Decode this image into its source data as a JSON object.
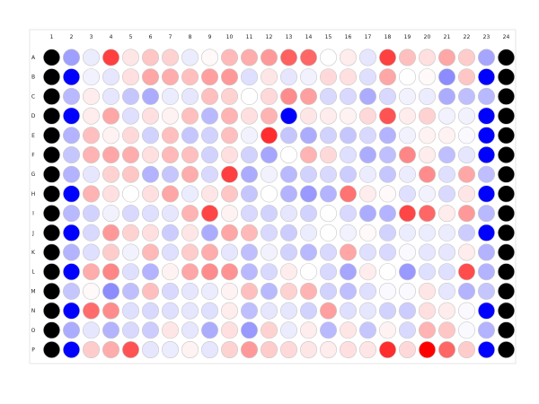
{
  "plate": {
    "columns": [
      "1",
      "2",
      "3",
      "4",
      "5",
      "6",
      "7",
      "8",
      "9",
      "10",
      "11",
      "12",
      "13",
      "14",
      "15",
      "16",
      "17",
      "18",
      "19",
      "20",
      "21",
      "22",
      "23",
      "24"
    ],
    "rows": [
      "A",
      "B",
      "C",
      "D",
      "E",
      "F",
      "G",
      "H",
      "I",
      "J",
      "K",
      "L",
      "M",
      "N",
      "O",
      "P"
    ],
    "value_encoding": "diverging: -4 = strong blue, 0 = white, +4 = strong red; control columns 1 (negative control, black) and 2/23 mixed controls",
    "colors": {
      "negative_control": "#000000",
      "positive_control": "#0000ff",
      "strong_red": "#ff0000",
      "border": "#c8c8c8",
      "frame": "#e6e6e6"
    },
    "wells": [
      [
        "ctrl-k",
        "-1.5",
        "-0.3",
        "3",
        "0.4",
        "0.9",
        "0.7",
        "-0.3",
        "0.1",
        "1.1",
        "1.3",
        "1.6",
        "2.5",
        "2.4",
        "0",
        "0.3",
        "-0.4",
        "3",
        "1",
        "0.5",
        "1.4",
        "0.8",
        "-1.4",
        "ctrl-k"
      ],
      [
        "ctrl-k",
        "ctrl-b",
        "-0.2",
        "-0.4",
        "0.5",
        "1.4",
        "1.3",
        "1",
        "1.5",
        "1.6",
        "-0.5",
        "0.4",
        "-0.4",
        "-0.2",
        "0.6",
        "0.5",
        "-0.5",
        "1.4",
        "0",
        "0.1",
        "-1.8",
        "0.9",
        "ctrl-b",
        "ctrl-k"
      ],
      [
        "ctrl-k",
        "-1.1",
        "0.3",
        "-0.4",
        "-0.9",
        "-1.3",
        "-0.3",
        "-0.4",
        "1",
        "0.7",
        "0",
        "0.6",
        "1.8",
        "1.5",
        "-0.6",
        "-0.6",
        "-1.3",
        "-0.6",
        "-0.2",
        "-0.3",
        "-1.3",
        "-1",
        "-1.1",
        "ctrl-k"
      ],
      [
        "ctrl-k",
        "ctrl-b",
        "0.3",
        "1.4",
        "-0.5",
        "0.5",
        "0.2",
        "1",
        "-1.1",
        "1.2",
        "0.5",
        "1.2",
        "ctrl-b",
        "0.4",
        "0.3",
        "0.2",
        "0.6",
        "2.7",
        "0.3",
        "0.7",
        "-0.2",
        "-0.2",
        "ctrl-b",
        "ctrl-k"
      ],
      [
        "ctrl-k",
        "-1.2",
        "1",
        "0.2",
        "0.6",
        "-0.7",
        "1",
        "-0.9",
        "-0.7",
        "1",
        "-0.2",
        "3.3",
        "-0.9",
        "-1.3",
        "-0.7",
        "-0.9",
        "-0.6",
        "-1.2",
        "-0.2",
        "0.2",
        "0.2",
        "-0.1",
        "ctrl-b",
        "ctrl-k"
      ],
      [
        "ctrl-k",
        "-0.9",
        "1.2",
        "1.4",
        "1.3",
        "0.5",
        "1.1",
        "1",
        "-0.7",
        "0.5",
        "-0.7",
        "-1.4",
        "0",
        "1.2",
        "0.6",
        "-0.5",
        "-1.3",
        "-1",
        "1.9",
        "0.3",
        "-1",
        "-0.4",
        "ctrl-b",
        "ctrl-k"
      ],
      [
        "ctrl-k",
        "-1.2",
        "-0.4",
        "0.7",
        "0.9",
        "-1.2",
        "-0.9",
        "1.3",
        "-0.6",
        "3",
        "-1.3",
        "-0.2",
        "-1.1",
        "-0.7",
        "-0.6",
        "-0.8",
        "-0.3",
        "-0.9",
        "-0.3",
        "1.8",
        "-0.5",
        "1.4",
        "-1",
        "ctrl-k"
      ],
      [
        "ctrl-k",
        "ctrl-b",
        "1.2",
        "0.5",
        "0",
        "0.5",
        "1.4",
        "-0.3",
        "0.4",
        "0.9",
        "-0.9",
        "0",
        "-1.2",
        "-1.6",
        "-1.2",
        "2.2",
        "0.3",
        "0.1",
        "-0.5",
        "-0.2",
        "-0.6",
        "0.4",
        "ctrl-b",
        "ctrl-k"
      ],
      [
        "ctrl-k",
        "-1.1",
        "-0.7",
        "-0.2",
        "-0.6",
        "-0.5",
        "-0.4",
        "1.2",
        "2.9",
        "0.2",
        "-0.6",
        "-0.7",
        "-0.4",
        "-0.7",
        "0",
        "-0.6",
        "-1.3",
        "-1.2",
        "2.9",
        "2.4",
        "0.3",
        "1.6",
        "-1.1",
        "ctrl-k"
      ],
      [
        "ctrl-k",
        "ctrl-b",
        "-0.6",
        "1.6",
        "0.7",
        "0.5",
        "-0.8",
        "0.4",
        "-1.3",
        "1.4",
        "1.1",
        "-0.6",
        "-0.8",
        "-0.3",
        "0",
        "-0.2",
        "0.1",
        "-0.7",
        "-0.3",
        "-0.3",
        "-0.3",
        "-0.8",
        "ctrl-b",
        "ctrl-k"
      ],
      [
        "ctrl-k",
        "-1.2",
        "-0.5",
        "0.8",
        "-0.2",
        "1.1",
        "-0.5",
        "0.8",
        "1.3",
        "-0.4",
        "-1",
        "-0.2",
        "-0.7",
        "-1.1",
        "-0.6",
        "1.4",
        "-0.5",
        "-0.6",
        "-0.1",
        "-0.4",
        "-0.4",
        "0.3",
        "-1.2",
        "ctrl-k"
      ],
      [
        "ctrl-k",
        "ctrl-b",
        "1.3",
        "1.9",
        "-0.5",
        "-1.2",
        "0.2",
        "1.4",
        "1.8",
        "1.7",
        "-1.1",
        "-0.6",
        "0.3",
        "0",
        "-0.6",
        "-1.4",
        "0.3",
        "0",
        "-1.6",
        "-0.5",
        "-0.5",
        "2.8",
        "-1.2",
        "ctrl-k"
      ],
      [
        "ctrl-k",
        "-0.9",
        "0.1",
        "-1.8",
        "-1",
        "1",
        "-0.6",
        "-0.4",
        "-0.3",
        "0.2",
        "1",
        "-1.1",
        "0.7",
        "1.2",
        "-0.7",
        "-1",
        "-0.5",
        "-0.1",
        "-0.1",
        "0.4",
        "-0.4",
        "-1.2",
        "-0.9",
        "ctrl-k"
      ],
      [
        "ctrl-k",
        "ctrl-b",
        "2.3",
        "1.8",
        "-0.5",
        "-0.6",
        "-0.5",
        "-0.4",
        "-0.5",
        "0.3",
        "-1",
        "-0.4",
        "-0.4",
        "-0.7",
        "1.5",
        "-0.5",
        "-0.4",
        "-0.7",
        "-0.8",
        "0.5",
        "0.3",
        "-0.1",
        "ctrl-b",
        "ctrl-k"
      ],
      [
        "ctrl-k",
        "-1.3",
        "-0.4",
        "-1.2",
        "-0.6",
        "-0.8",
        "0.4",
        "-0.4",
        "-1.3",
        "0.5",
        "-1.6",
        "0.7",
        "-0.3",
        "0.3",
        "-1.1",
        "0.4",
        "-0.9",
        "0.2",
        "-0.6",
        "1.2",
        "0.9",
        "-0.1",
        "-1.2",
        "ctrl-k"
      ],
      [
        "ctrl-k",
        "ctrl-b",
        "0.8",
        "1.3",
        "2.7",
        "-0.4",
        "-0.3",
        "0.2",
        "-0.4",
        "0.7",
        "1.6",
        "0.8",
        "0.6",
        "0.4",
        "0.3",
        "0.5",
        "0.4",
        "3.3",
        "0.6",
        "4",
        "2.4",
        "0.8",
        "ctrl-b",
        "ctrl-k"
      ]
    ]
  }
}
